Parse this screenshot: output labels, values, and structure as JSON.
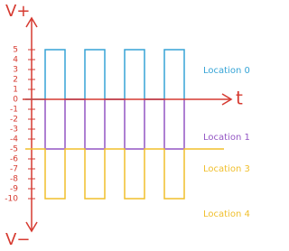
{
  "chart_data": {
    "type": "line",
    "y_label_top": "V+",
    "y_label_bottom": "V−",
    "x_label": "t",
    "xlim": [
      0,
      10.5
    ],
    "ylim": [
      -13,
      9
    ],
    "yticks": [
      5,
      4,
      3,
      2,
      1,
      0,
      -1,
      -2,
      -3,
      -4,
      -5,
      -6,
      -7,
      -8,
      -9,
      -10
    ],
    "axis_color": "#d63a30",
    "series": [
      {
        "name": "Location 0",
        "color": "#36a4d6",
        "x": [
          0,
          1,
          1,
          2,
          2,
          3,
          3,
          4,
          4,
          5,
          5,
          6,
          6,
          7,
          7,
          8,
          8
        ],
        "values": [
          0,
          0,
          5,
          5,
          0,
          0,
          5,
          5,
          0,
          0,
          5,
          5,
          0,
          0,
          5,
          5,
          0
        ]
      },
      {
        "name": "Location 1",
        "color": "#9457c4",
        "x": [
          1,
          1,
          2,
          2,
          3,
          3,
          4,
          4,
          5,
          5,
          6,
          6,
          7,
          7,
          8,
          8
        ],
        "values": [
          0,
          -5,
          -5,
          0,
          0,
          -5,
          -5,
          0,
          0,
          -5,
          -5,
          0,
          0,
          -5,
          -5,
          0
        ]
      },
      {
        "name": "Location 3",
        "color": "#f0bf2c",
        "x": [
          0,
          1,
          1,
          2,
          2,
          3,
          3,
          4,
          4,
          5,
          5,
          6,
          6,
          7,
          7,
          8,
          8,
          10
        ],
        "values": [
          -5,
          -5,
          -10,
          -10,
          -5,
          -5,
          -10,
          -10,
          -5,
          -5,
          -10,
          -10,
          -5,
          -5,
          -10,
          -10,
          -5,
          -5
        ]
      }
    ],
    "annotations": [
      {
        "text": "Location 4",
        "color": "#f0bf2c"
      }
    ]
  }
}
